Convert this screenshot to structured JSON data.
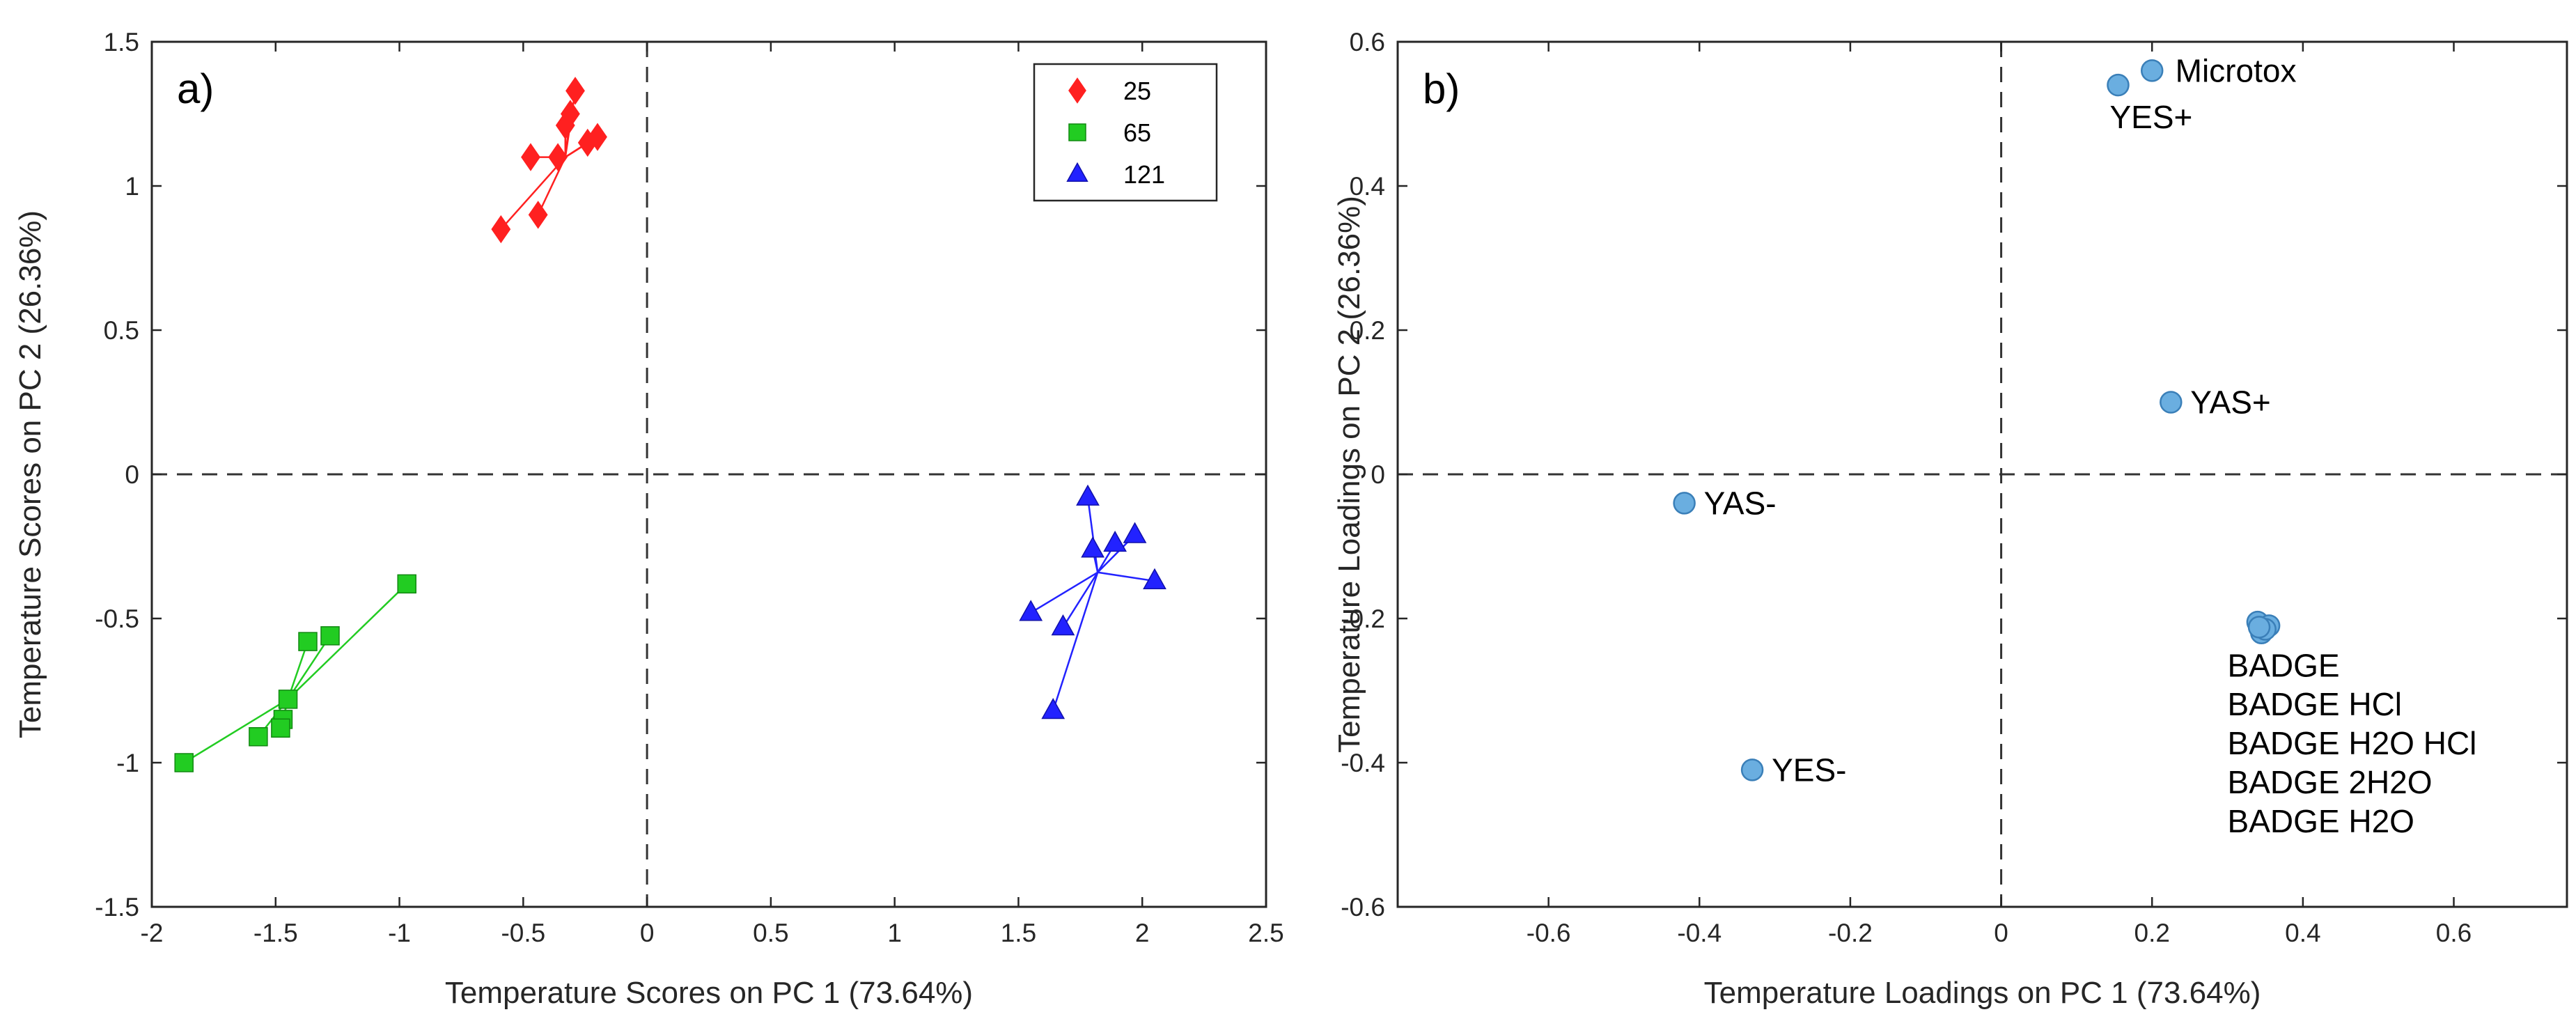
{
  "colors": {
    "t25": "#ff2020",
    "t65": "#22cc22",
    "t121": "#2222ff",
    "loading": "#6aaee0",
    "axis": "#262626"
  },
  "chart_data": [
    {
      "type": "scatter",
      "panel_label": "a)",
      "xlabel": "Temperature Scores on PC 1 (73.64%)",
      "ylabel": "Temperature Scores on PC 2 (26.36%)",
      "xlim": [
        -2,
        2.5
      ],
      "ylim": [
        -1.5,
        1.5
      ],
      "xticks": [
        -2,
        -1.5,
        -1,
        -0.5,
        0,
        0.5,
        1,
        1.5,
        2,
        2.5
      ],
      "yticks": [
        -1.5,
        -1,
        -0.5,
        0,
        0.5,
        1,
        1.5
      ],
      "xtick_labels": [
        "-2",
        "-1.5",
        "-1",
        "-0.5",
        "0",
        "0.5",
        "1",
        "1.5",
        "2",
        "2.5"
      ],
      "ytick_labels": [
        "-1.5",
        "-1",
        "-0.5",
        "0",
        "0.5",
        "1",
        "1.5"
      ],
      "reference_lines": {
        "x": 0,
        "y": 0,
        "style": "dashed"
      },
      "legend": {
        "position": "top-right",
        "entries": [
          "25",
          "65",
          "121"
        ]
      },
      "series": [
        {
          "name": "25",
          "marker": "diamond",
          "color_key": "t25",
          "center": [
            -0.33,
            1.1
          ],
          "points": [
            [
              -0.29,
              1.33
            ],
            [
              -0.31,
              1.25
            ],
            [
              -0.33,
              1.21
            ],
            [
              -0.2,
              1.17
            ],
            [
              -0.24,
              1.15
            ],
            [
              -0.47,
              1.1
            ],
            [
              -0.36,
              1.1
            ],
            [
              -0.44,
              0.9
            ],
            [
              -0.59,
              0.85
            ]
          ]
        },
        {
          "name": "65",
          "marker": "square",
          "color_key": "t65",
          "center": [
            -1.45,
            -0.78
          ],
          "points": [
            [
              -0.97,
              -0.38
            ],
            [
              -1.28,
              -0.56
            ],
            [
              -1.37,
              -0.58
            ],
            [
              -1.45,
              -0.78
            ],
            [
              -1.47,
              -0.85
            ],
            [
              -1.48,
              -0.88
            ],
            [
              -1.57,
              -0.91
            ],
            [
              -1.87,
              -1.0
            ]
          ]
        },
        {
          "name": "121",
          "marker": "triangle",
          "color_key": "t121",
          "center": [
            1.82,
            -0.34
          ],
          "points": [
            [
              1.78,
              -0.08
            ],
            [
              1.97,
              -0.21
            ],
            [
              1.89,
              -0.24
            ],
            [
              1.8,
              -0.26
            ],
            [
              2.05,
              -0.37
            ],
            [
              1.55,
              -0.48
            ],
            [
              1.68,
              -0.53
            ],
            [
              1.64,
              -0.82
            ]
          ]
        }
      ]
    },
    {
      "type": "scatter",
      "panel_label": "b)",
      "xlabel": "Temperature Loadings on PC 1 (73.64%)",
      "ylabel": "Temperature Loadings on PC 2 (26.36%)",
      "xlim": [
        -0.8,
        0.75
      ],
      "ylim": [
        -0.6,
        0.6
      ],
      "xticks": [
        -0.6,
        -0.4,
        -0.2,
        0,
        0.2,
        0.4,
        0.6
      ],
      "yticks": [
        -0.6,
        -0.4,
        -0.2,
        0,
        0.2,
        0.4,
        0.6
      ],
      "xtick_labels": [
        "-0.6",
        "-0.4",
        "-0.2",
        "0",
        "0.2",
        "0.4",
        "0.6"
      ],
      "ytick_labels": [
        "-0.6",
        "-0.4",
        "-0.2",
        "0",
        "0.2",
        "0.4",
        "0.6"
      ],
      "reference_lines": {
        "x": 0,
        "y": 0,
        "style": "dashed"
      },
      "points": [
        {
          "x": 0.2,
          "y": 0.56
        },
        {
          "x": 0.155,
          "y": 0.54
        },
        {
          "x": 0.225,
          "y": 0.1
        },
        {
          "x": -0.42,
          "y": -0.04
        },
        {
          "x": -0.33,
          "y": -0.41
        },
        {
          "x": 0.34,
          "y": -0.205
        },
        {
          "x": 0.355,
          "y": -0.21
        },
        {
          "x": 0.345,
          "y": -0.22
        },
        {
          "x": 0.35,
          "y": -0.215
        },
        {
          "x": 0.342,
          "y": -0.212
        }
      ],
      "annotations": [
        {
          "text": "Microtox",
          "x": 0.205,
          "y": 0.56,
          "anchor": "right"
        },
        {
          "text": "YES+",
          "x": 0.155,
          "y": 0.54,
          "anchor": "below"
        },
        {
          "text": "YAS+",
          "x": 0.225,
          "y": 0.1,
          "anchor": "right"
        },
        {
          "text": "YAS-",
          "x": -0.42,
          "y": -0.04,
          "anchor": "right"
        },
        {
          "text": "YES-",
          "x": -0.33,
          "y": -0.41,
          "anchor": "right"
        },
        {
          "text": "BADGE",
          "x": 0.3,
          "y": -0.265,
          "anchor": "list"
        },
        {
          "text": "BADGE HCl",
          "x": 0.3,
          "y": -0.319,
          "anchor": "list"
        },
        {
          "text": "BADGE H2O HCl",
          "x": 0.3,
          "y": -0.373,
          "anchor": "list"
        },
        {
          "text": "BADGE 2H2O",
          "x": 0.3,
          "y": -0.427,
          "anchor": "list"
        },
        {
          "text": "BADGE H2O",
          "x": 0.3,
          "y": -0.481,
          "anchor": "list"
        }
      ]
    }
  ]
}
